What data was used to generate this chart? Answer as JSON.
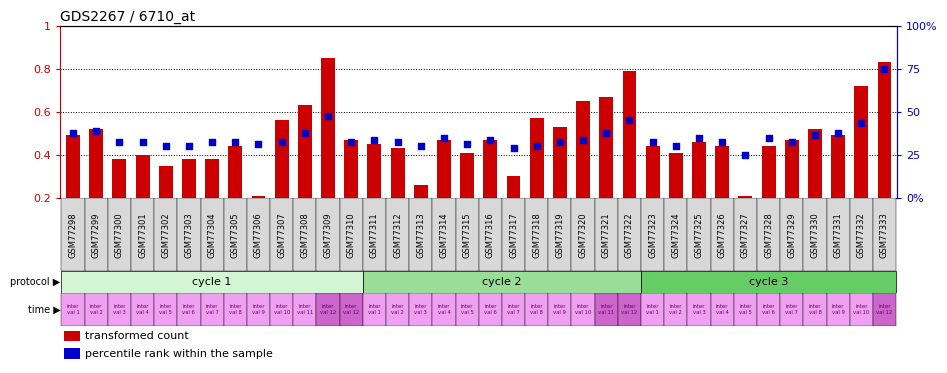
{
  "title": "GDS2267 / 6710_at",
  "samples": [
    "GSM77298",
    "GSM77299",
    "GSM77300",
    "GSM77301",
    "GSM77302",
    "GSM77303",
    "GSM77304",
    "GSM77305",
    "GSM77306",
    "GSM77307",
    "GSM77308",
    "GSM77309",
    "GSM77310",
    "GSM77311",
    "GSM77312",
    "GSM77313",
    "GSM77314",
    "GSM77315",
    "GSM77316",
    "GSM77317",
    "GSM77318",
    "GSM77319",
    "GSM77320",
    "GSM77321",
    "GSM77322",
    "GSM77323",
    "GSM77324",
    "GSM77325",
    "GSM77326",
    "GSM77327",
    "GSM77328",
    "GSM77329",
    "GSM77330",
    "GSM77331",
    "GSM77332",
    "GSM77333"
  ],
  "bar_values": [
    0.49,
    0.52,
    0.38,
    0.4,
    0.35,
    0.38,
    0.38,
    0.44,
    0.21,
    0.56,
    0.63,
    0.85,
    0.47,
    0.45,
    0.43,
    0.26,
    0.47,
    0.41,
    0.47,
    0.3,
    0.57,
    0.53,
    0.65,
    0.67,
    0.79,
    0.44,
    0.41,
    0.46,
    0.44,
    0.21,
    0.44,
    0.47,
    0.52,
    0.49,
    0.72,
    0.83
  ],
  "dot_values": [
    0.5,
    0.51,
    0.46,
    0.46,
    0.44,
    0.44,
    0.46,
    0.46,
    0.45,
    0.46,
    0.5,
    0.58,
    0.46,
    0.47,
    0.46,
    0.44,
    0.48,
    0.45,
    0.47,
    0.43,
    0.44,
    0.46,
    0.47,
    0.5,
    0.56,
    0.46,
    0.44,
    0.48,
    0.46,
    0.4,
    0.48,
    0.46,
    0.49,
    0.5,
    0.55,
    0.8
  ],
  "ylim_left": [
    0.2,
    1.0
  ],
  "ylim_right": [
    0,
    100
  ],
  "yticks_left": [
    0.2,
    0.4,
    0.6,
    0.8,
    1.0
  ],
  "ytick_labels_left": [
    "0.2",
    "0.4",
    "0.6",
    "0.8",
    "1"
  ],
  "yticks_right": [
    0,
    25,
    50,
    75,
    100
  ],
  "ytick_labels_right": [
    "0%",
    "25",
    "50",
    "75",
    "100%"
  ],
  "bar_color": "#cc0000",
  "dot_color": "#0000cc",
  "background_color": "#ffffff",
  "grid_color": "#000000",
  "cycle1_count": 13,
  "cycle2_count": 12,
  "cycle3_count": 11,
  "cycle1_label": "cycle 1",
  "cycle2_label": "cycle 2",
  "cycle3_label": "cycle 3",
  "cycle1_color": "#d4f5d4",
  "cycle2_color": "#99dd99",
  "cycle3_color": "#66cc66",
  "time_color_light": "#f0a0f0",
  "time_color_dark": "#cc66cc",
  "xlabel_color": "#cc0000",
  "right_axis_color": "#0000cc",
  "title_fontsize": 10,
  "tick_fontsize": 6,
  "protocol_label": "protocol",
  "time_label": "time"
}
